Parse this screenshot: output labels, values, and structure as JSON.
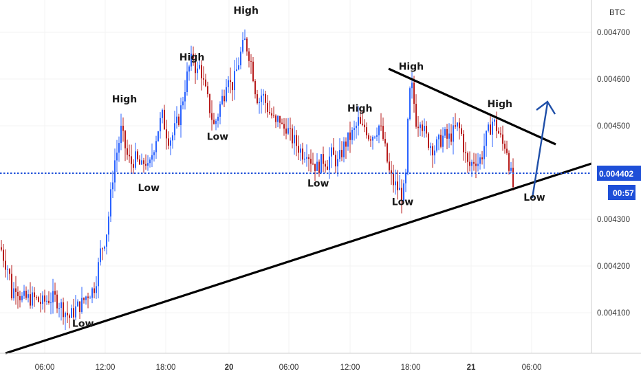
{
  "chart_data": {
    "type": "candlestick",
    "currency_label": "BTC",
    "y_ticks": [
      "0.004700",
      "0.004600",
      "0.004500",
      "0.004300",
      "0.004200",
      "0.004100"
    ],
    "y_tick_values": [
      0.0047,
      0.0046,
      0.0045,
      0.0043,
      0.0042,
      0.0041
    ],
    "x_ticks": [
      {
        "label": "06:00",
        "bold": false
      },
      {
        "label": "12:00",
        "bold": false
      },
      {
        "label": "18:00",
        "bold": false
      },
      {
        "label": "20",
        "bold": true
      },
      {
        "label": "06:00",
        "bold": false
      },
      {
        "label": "12:00",
        "bold": false
      },
      {
        "label": "18:00",
        "bold": false
      },
      {
        "label": "21",
        "bold": true
      },
      {
        "label": "06:00",
        "bold": false
      }
    ],
    "ylim": [
      0.00404,
      0.00477
    ],
    "current_price": "0.004402",
    "current_price_value": 0.004402,
    "countdown": "00:57",
    "colors": {
      "up": "#2962ff",
      "down": "#b71c1c",
      "badge": "#1e4fd8",
      "line": "#000000",
      "arrow": "#1f4fa8",
      "price_line": "#1e4fd8"
    },
    "close_path": [
      [
        0,
        0.00424
      ],
      [
        6,
        0.00421
      ],
      [
        12,
        0.00419
      ],
      [
        16,
        0.00414
      ],
      [
        22,
        0.00416
      ],
      [
        30,
        0.00413
      ],
      [
        40,
        0.00413
      ],
      [
        50,
        0.00413
      ],
      [
        60,
        0.00412
      ],
      [
        70,
        0.00413
      ],
      [
        80,
        0.00413
      ],
      [
        90,
        0.00411
      ],
      [
        95,
        0.0041
      ],
      [
        100,
        0.00409
      ],
      [
        105,
        0.0041
      ],
      [
        110,
        0.00411
      ],
      [
        118,
        0.00412
      ],
      [
        126,
        0.00414
      ],
      [
        135,
        0.00415
      ],
      [
        140,
        0.00418
      ],
      [
        145,
        0.00423
      ],
      [
        150,
        0.00425
      ],
      [
        155,
        0.00428
      ],
      [
        160,
        0.00435
      ],
      [
        165,
        0.00442
      ],
      [
        170,
        0.00445
      ],
      [
        175,
        0.00449
      ],
      [
        180,
        0.00446
      ],
      [
        185,
        0.00443
      ],
      [
        190,
        0.00442
      ],
      [
        195,
        0.00443
      ],
      [
        200,
        0.00442
      ],
      [
        205,
        0.00441
      ],
      [
        210,
        0.00443
      ],
      [
        215,
        0.0044
      ],
      [
        220,
        0.00444
      ],
      [
        225,
        0.00447
      ],
      [
        230,
        0.0045
      ],
      [
        235,
        0.00452
      ],
      [
        240,
        0.00449
      ],
      [
        245,
        0.00447
      ],
      [
        250,
        0.00448
      ],
      [
        255,
        0.0045
      ],
      [
        260,
        0.00452
      ],
      [
        265,
        0.00456
      ],
      [
        270,
        0.0046
      ],
      [
        275,
        0.00463
      ],
      [
        280,
        0.00465
      ],
      [
        285,
        0.00461
      ],
      [
        290,
        0.00463
      ],
      [
        295,
        0.00459
      ],
      [
        300,
        0.00456
      ],
      [
        305,
        0.00453
      ],
      [
        310,
        0.0045
      ],
      [
        315,
        0.00452
      ],
      [
        320,
        0.00455
      ],
      [
        325,
        0.00457
      ],
      [
        330,
        0.00462
      ],
      [
        335,
        0.00458
      ],
      [
        340,
        0.0046
      ],
      [
        345,
        0.00463
      ],
      [
        350,
        0.00466
      ],
      [
        355,
        0.00468
      ],
      [
        360,
        0.00466
      ],
      [
        365,
        0.00463
      ],
      [
        370,
        0.00458
      ],
      [
        375,
        0.00455
      ],
      [
        380,
        0.00457
      ],
      [
        385,
        0.00455
      ],
      [
        390,
        0.00453
      ],
      [
        395,
        0.00452
      ],
      [
        400,
        0.0045
      ],
      [
        405,
        0.00452
      ],
      [
        410,
        0.00449
      ],
      [
        415,
        0.0045
      ],
      [
        420,
        0.00448
      ],
      [
        425,
        0.00447
      ],
      [
        430,
        0.00446
      ],
      [
        435,
        0.00445
      ],
      [
        440,
        0.00444
      ],
      [
        445,
        0.00445
      ],
      [
        450,
        0.00443
      ],
      [
        455,
        0.00442
      ],
      [
        460,
        0.00441
      ],
      [
        465,
        0.00442
      ],
      [
        470,
        0.00443
      ],
      [
        475,
        0.00442
      ],
      [
        480,
        0.00444
      ],
      [
        485,
        0.00443
      ],
      [
        490,
        0.00442
      ],
      [
        495,
        0.00444
      ],
      [
        500,
        0.00446
      ],
      [
        505,
        0.00447
      ],
      [
        510,
        0.00448
      ],
      [
        515,
        0.00449
      ],
      [
        520,
        0.00451
      ],
      [
        525,
        0.00449
      ],
      [
        530,
        0.0045
      ],
      [
        535,
        0.00448
      ],
      [
        540,
        0.00448
      ],
      [
        545,
        0.00449
      ],
      [
        550,
        0.0045
      ],
      [
        555,
        0.00448
      ],
      [
        560,
        0.00444
      ],
      [
        565,
        0.0044
      ],
      [
        570,
        0.00438
      ],
      [
        575,
        0.00437
      ],
      [
        580,
        0.00436
      ],
      [
        585,
        0.00435
      ],
      [
        590,
        0.0044
      ],
      [
        593,
        0.00455
      ],
      [
        597,
        0.00459
      ],
      [
        600,
        0.00456
      ],
      [
        605,
        0.0045
      ],
      [
        610,
        0.00452
      ],
      [
        615,
        0.00449
      ],
      [
        620,
        0.00447
      ],
      [
        625,
        0.00446
      ],
      [
        630,
        0.00445
      ],
      [
        635,
        0.00446
      ],
      [
        640,
        0.00447
      ],
      [
        645,
        0.00448
      ],
      [
        650,
        0.00447
      ],
      [
        655,
        0.00448
      ],
      [
        660,
        0.00449
      ],
      [
        665,
        0.0045
      ],
      [
        670,
        0.00448
      ],
      [
        675,
        0.00444
      ],
      [
        680,
        0.00441
      ],
      [
        685,
        0.00442
      ],
      [
        690,
        0.00443
      ],
      [
        695,
        0.00442
      ],
      [
        700,
        0.00444
      ],
      [
        705,
        0.00447
      ],
      [
        710,
        0.00449
      ],
      [
        715,
        0.00451
      ],
      [
        720,
        0.0045
      ],
      [
        725,
        0.00448
      ],
      [
        730,
        0.00446
      ],
      [
        735,
        0.00446
      ],
      [
        740,
        0.00441
      ],
      [
        745,
        0.00437
      ]
    ],
    "annotations": [
      {
        "text": "High",
        "x_frac": 0.2105,
        "y": 0.00455
      },
      {
        "text": "High",
        "x_frac": 0.3245,
        "y": 0.00464
      },
      {
        "text": "High",
        "x_frac": 0.4159,
        "y": 0.00474
      },
      {
        "text": "High",
        "x_frac": 0.6084,
        "y": 0.00453
      },
      {
        "text": "High",
        "x_frac": 0.6952,
        "y": 0.00462
      },
      {
        "text": "High",
        "x_frac": 0.845,
        "y": 0.00454
      },
      {
        "text": "Low",
        "x_frac": 0.1403,
        "y": 0.00407
      },
      {
        "text": "Low",
        "x_frac": 0.2515,
        "y": 0.00436
      },
      {
        "text": "Low",
        "x_frac": 0.3678,
        "y": 0.00447
      },
      {
        "text": "Low",
        "x_frac": 0.538,
        "y": 0.00437
      },
      {
        "text": "Low",
        "x_frac": 0.6807,
        "y": 0.00433
      },
      {
        "text": "Low",
        "x_frac": 0.9035,
        "y": 0.00434
      }
    ]
  }
}
